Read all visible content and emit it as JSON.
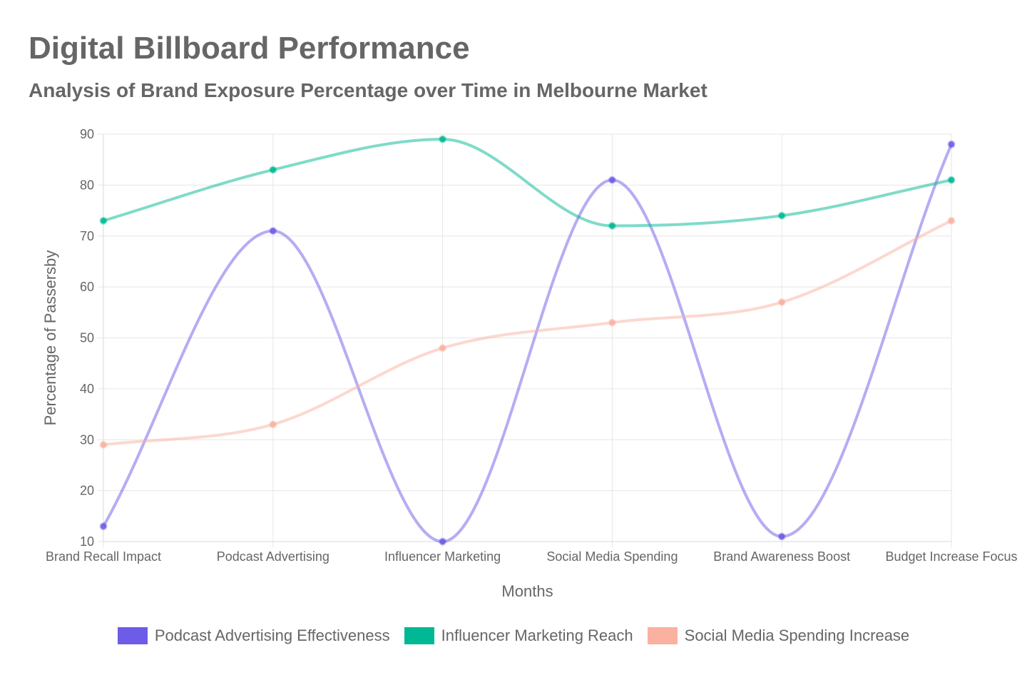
{
  "header": {
    "title": "Digital Billboard Performance",
    "subtitle": "Analysis of Brand Exposure Percentage over Time in Melbourne Market"
  },
  "chart_data": {
    "type": "line",
    "title": "Digital Billboard Performance",
    "subtitle": "Analysis of Brand Exposure Percentage over Time in Melbourne Market",
    "xlabel": "Months",
    "ylabel": "Percentage of Passersby",
    "categories": [
      "Brand Recall Impact",
      "Podcast Advertising",
      "Influencer Marketing",
      "Social Media Spending",
      "Brand Awareness Boost",
      "Budget Increase Focus"
    ],
    "ylim": [
      10,
      90
    ],
    "yticks": [
      10,
      20,
      30,
      40,
      50,
      60,
      70,
      80,
      90
    ],
    "grid": true,
    "legend_position": "bottom",
    "series": [
      {
        "name": "Podcast Advertising Effectiveness",
        "values": [
          13,
          71,
          10,
          81,
          11,
          88
        ],
        "color": "#6c5ce7"
      },
      {
        "name": "Influencer Marketing Reach",
        "values": [
          73,
          83,
          89,
          72,
          74,
          81
        ],
        "color": "#00b894"
      },
      {
        "name": "Social Media Spending Increase",
        "values": [
          29,
          33,
          48,
          53,
          57,
          73
        ],
        "color": "#fab1a0"
      }
    ]
  }
}
